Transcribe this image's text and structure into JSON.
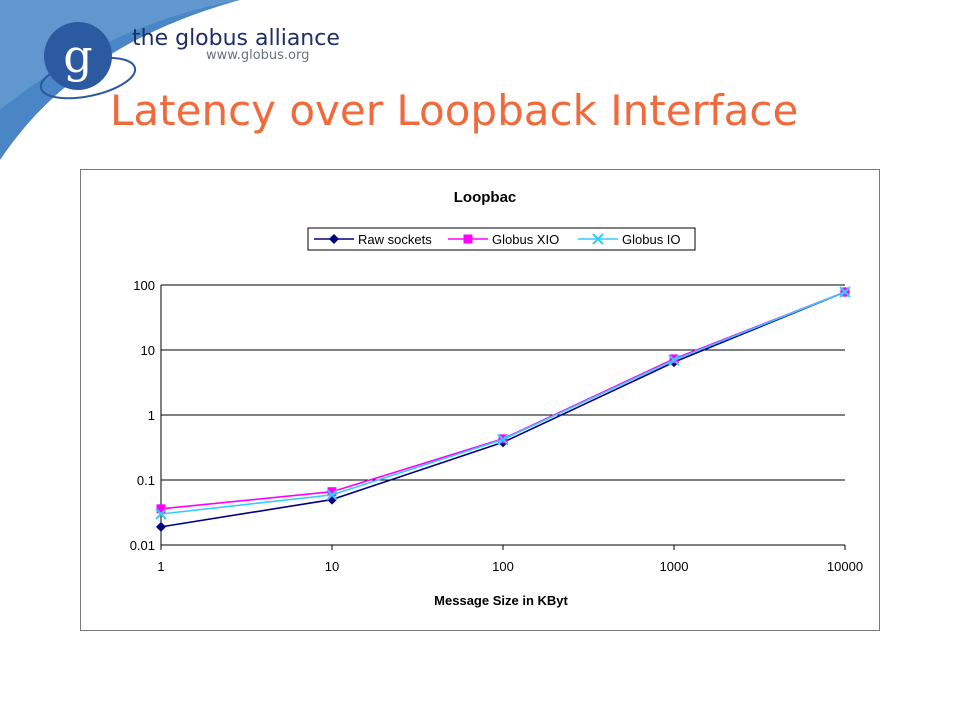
{
  "slide": {
    "title": "Latency over Loopback Interface"
  },
  "logo": {
    "name": "the globus alliance",
    "url": "www.globus.org",
    "mark_letter": "g"
  },
  "colors": {
    "title": "#f06a3c",
    "logo_blue": "#2c5aa0",
    "corner_blue": "#4a86c5"
  },
  "chart_data": {
    "type": "line",
    "title": "Loopbac",
    "xlabel": "Message Size in KByt",
    "ylabel": "",
    "x_scale": "log",
    "y_scale": "log",
    "x": [
      1,
      10,
      100,
      1000,
      10000
    ],
    "x_tick_labels": [
      "1",
      "10",
      "100",
      "1000",
      "10000"
    ],
    "y_tick_labels": [
      "100",
      "10",
      "1",
      "0.1",
      "0.01"
    ],
    "xlim": [
      1,
      10000
    ],
    "ylim": [
      0.01,
      100
    ],
    "grid": "horizontal",
    "legend_position": "top",
    "series": [
      {
        "name": "Raw sockets",
        "color": "#000080",
        "marker": "diamond",
        "values": [
          0.019,
          0.05,
          0.38,
          6.5,
          78
        ]
      },
      {
        "name": "Globus XIO",
        "color": "#ff00ff",
        "marker": "square",
        "values": [
          0.036,
          0.066,
          0.43,
          7.3,
          78
        ]
      },
      {
        "name": "Globus IO",
        "color": "#33ccff",
        "marker": "x",
        "values": [
          0.03,
          0.059,
          0.42,
          7.0,
          78
        ]
      }
    ]
  }
}
